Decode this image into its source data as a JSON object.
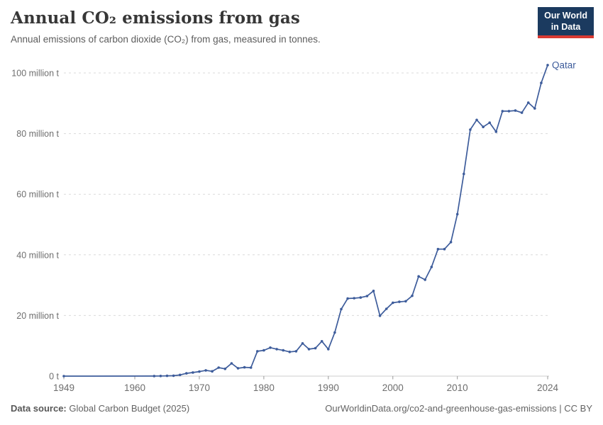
{
  "header": {
    "title": "Annual CO₂ emissions from gas",
    "subtitle": "Annual emissions of carbon dioxide (CO₂) from gas, measured in tonnes.",
    "logo": {
      "line1": "Our World",
      "line2": "in Data",
      "bg_color": "#1b3a5f",
      "accent_color": "#d93a32"
    }
  },
  "footer": {
    "source_label": "Data source:",
    "source_value": "Global Carbon Budget (2025)",
    "license_text": "OurWorldinData.org/co2-and-greenhouse-gas-emissions | CC BY"
  },
  "chart_data": {
    "type": "line",
    "title": "Annual CO₂ emissions from gas",
    "ylabel": "",
    "xlabel": "",
    "unit": "million tonnes",
    "entity_label": "Qatar",
    "line_color": "#3d5c9b",
    "grid": "horizontal-dashed",
    "grid_color": "#dadada",
    "axis_color": "#cccccc",
    "tick_color": "#999999",
    "label_color": "#6e6e6e",
    "legend_position": "end-of-line",
    "xlim": [
      1949,
      2024
    ],
    "ylim": [
      0,
      105
    ],
    "x_ticks": [
      1949,
      1960,
      1970,
      1980,
      1990,
      2000,
      2010,
      2024
    ],
    "y_ticks": [
      {
        "value": 0,
        "label": "0 t"
      },
      {
        "value": 20,
        "label": "20 million t"
      },
      {
        "value": 40,
        "label": "40 million t"
      },
      {
        "value": 60,
        "label": "60 million t"
      },
      {
        "value": 80,
        "label": "80 million t"
      },
      {
        "value": 100,
        "label": "100 million t"
      }
    ],
    "series": [
      {
        "name": "Qatar",
        "x": [
          1949,
          1963,
          1964,
          1965,
          1966,
          1967,
          1968,
          1969,
          1970,
          1971,
          1972,
          1973,
          1974,
          1975,
          1976,
          1977,
          1978,
          1979,
          1980,
          1981,
          1982,
          1983,
          1984,
          1985,
          1986,
          1987,
          1988,
          1989,
          1990,
          1991,
          1992,
          1993,
          1994,
          1995,
          1996,
          1997,
          1998,
          1999,
          2000,
          2001,
          2002,
          2003,
          2004,
          2005,
          2006,
          2007,
          2008,
          2009,
          2010,
          2011,
          2012,
          2013,
          2014,
          2015,
          2016,
          2017,
          2018,
          2019,
          2020,
          2021,
          2022,
          2023,
          2024
        ],
        "values": [
          0,
          0.02,
          0.05,
          0.1,
          0.15,
          0.4,
          0.9,
          1.2,
          1.5,
          1.9,
          1.6,
          2.8,
          2.4,
          4.2,
          2.6,
          2.9,
          2.8,
          8.2,
          8.5,
          9.4,
          8.9,
          8.5,
          8.0,
          8.2,
          10.8,
          8.9,
          9.2,
          11.5,
          8.9,
          14.4,
          22.1,
          25.6,
          25.7,
          25.9,
          26.4,
          28.1,
          19.9,
          22.2,
          24.2,
          24.5,
          24.7,
          26.5,
          32.9,
          31.8,
          36.0,
          41.9,
          41.9,
          44.2,
          53.4,
          66.7,
          81.3,
          84.5,
          82.2,
          83.6,
          80.6,
          87.4,
          87.4,
          87.6,
          86.9,
          90.2,
          88.3,
          96.7,
          102.6
        ]
      }
    ]
  }
}
